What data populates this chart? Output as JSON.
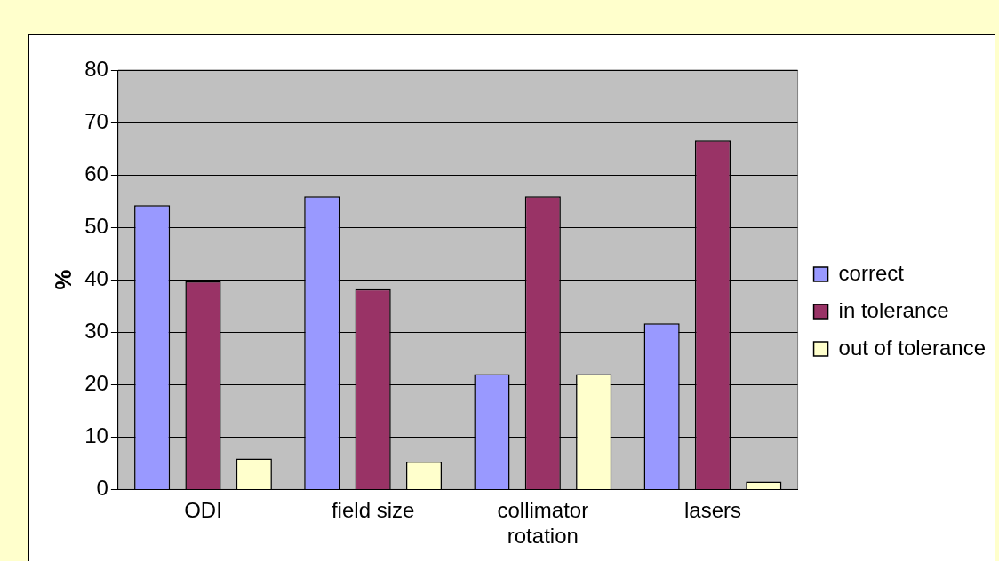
{
  "chart_data": {
    "type": "bar",
    "categories": [
      "ODI",
      "field size",
      "collimator rotation",
      "lasers"
    ],
    "ylabel": "%",
    "series": [
      {
        "name": "correct",
        "color": "#9999ff",
        "values": [
          54.2,
          55.9,
          22.0,
          31.7
        ]
      },
      {
        "name": "in tolerance",
        "color": "#993366",
        "values": [
          39.7,
          38.2,
          55.9,
          66.6
        ]
      },
      {
        "name": "out of tolerance",
        "color": "#ffffcc",
        "values": [
          5.9,
          5.3,
          22.0,
          1.5
        ]
      }
    ],
    "ylim": [
      0,
      80
    ],
    "yticks": [
      0,
      10,
      20,
      30,
      40,
      50,
      60,
      70,
      80
    ],
    "grid": "y",
    "legend": "right"
  }
}
